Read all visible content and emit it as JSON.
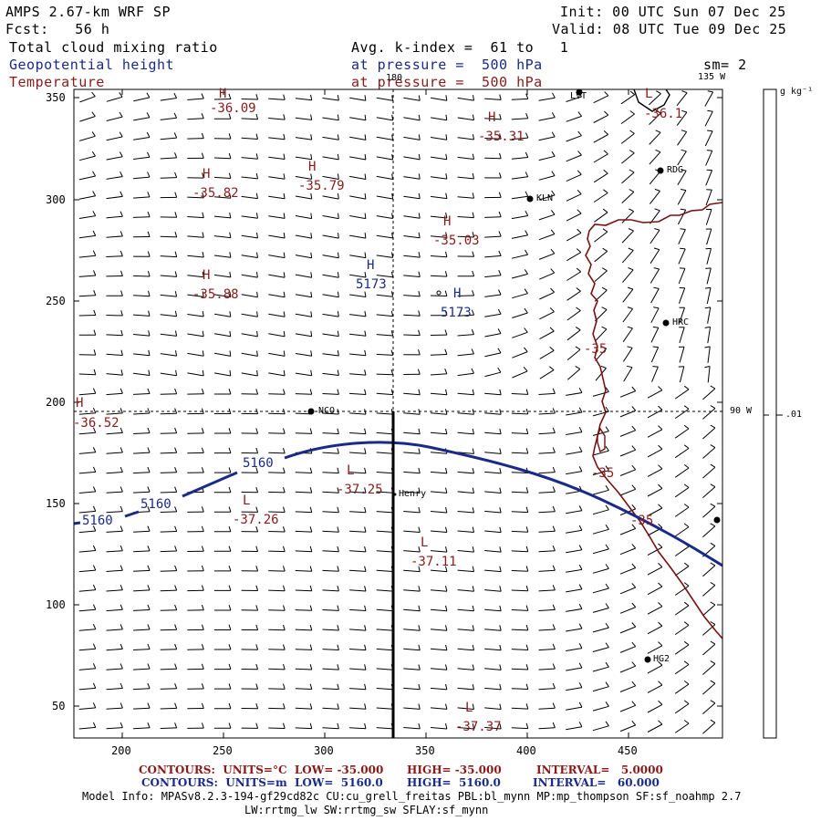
{
  "header": {
    "model_title": "AMPS 2.67-km WRF SP",
    "forecast": "Fcst:   56 h",
    "init": "Init: 00 UTC Sun 07 Dec 25",
    "valid": "Valid: 08 UTC Tue 09 Dec 25",
    "field1": "Total cloud mixing ratio",
    "field2": "Geopotential height",
    "field3": "Temperature",
    "avg_text": "Avg. k-index =  61 to   1",
    "pressure1": "at pressure =  500 hPa",
    "pressure2": "at pressure =  500 hPa",
    "smooth": "sm= 2"
  },
  "colorbar": {
    "unit": "g kg⁻¹",
    "tick_label": ".01"
  },
  "map_labels": {
    "lon_180": "180",
    "lon_135w": "135 W",
    "lon_90w": "90 W"
  },
  "stations": [
    {
      "id": "LVT"
    },
    {
      "id": "RDG"
    },
    {
      "id": "KLN"
    },
    {
      "id": "HRC"
    },
    {
      "id": "NCO"
    },
    {
      "id": "Henry"
    },
    {
      "id": "HG2"
    }
  ],
  "highs_lows": [
    {
      "sym": "H",
      "val": "-36.09"
    },
    {
      "sym": "H",
      "val": "-35.31"
    },
    {
      "sym": "L",
      "val": "-36.1"
    },
    {
      "sym": "H",
      "val": "-35.82"
    },
    {
      "sym": "H",
      "val": "-35.79"
    },
    {
      "sym": "H",
      "val": "-35.03"
    },
    {
      "sym": "H",
      "val": "-35.88"
    },
    {
      "sym": "H",
      "val": "5173"
    },
    {
      "sym": "H",
      "val": "5173"
    },
    {
      "sym": "H",
      "val": "-36.52"
    },
    {
      "sym": "L",
      "val": "-37.25"
    },
    {
      "sym": "L",
      "val": "-37.26"
    },
    {
      "sym": "L",
      "val": "-37.11"
    },
    {
      "sym": "L",
      "val": "-37.37"
    }
  ],
  "contour_labels": {
    "height": [
      "5160",
      "5160",
      "5160"
    ],
    "temp": [
      "-35",
      "-35",
      "-35"
    ]
  },
  "axes": {
    "x_ticks": [
      "200",
      "250",
      "300",
      "350",
      "400",
      "450"
    ],
    "y_ticks": [
      "350",
      "300",
      "250",
      "200",
      "150",
      "100",
      "50"
    ]
  },
  "footer": {
    "temp_contours": "CONTOURS:  UNITS=°C  LOW= -35.000",
    "temp_high": "HIGH= -35.000",
    "temp_interval": "INTERVAL=   5.0000",
    "hgt_contours": "CONTOURS:  UNITS=m  LOW=  5160.0",
    "hgt_high": "HIGH=  5160.0",
    "hgt_interval": "INTERVAL=   60.000",
    "model_info": "Model Info: MPASv8.2.3-194-gf29cd82c CU:cu_grell_freitas PBL:bl_mynn MP:mp_thompson SF:sf_noahmp 2.7",
    "model_info2": "LW:rrtmg_lw SW:rrtmg_sw SFLAY:sf_mynn"
  },
  "colors": {
    "height_contour": "#1a2a8a",
    "temp_contour": "#8a1a1a",
    "coast": "#7a1010"
  }
}
